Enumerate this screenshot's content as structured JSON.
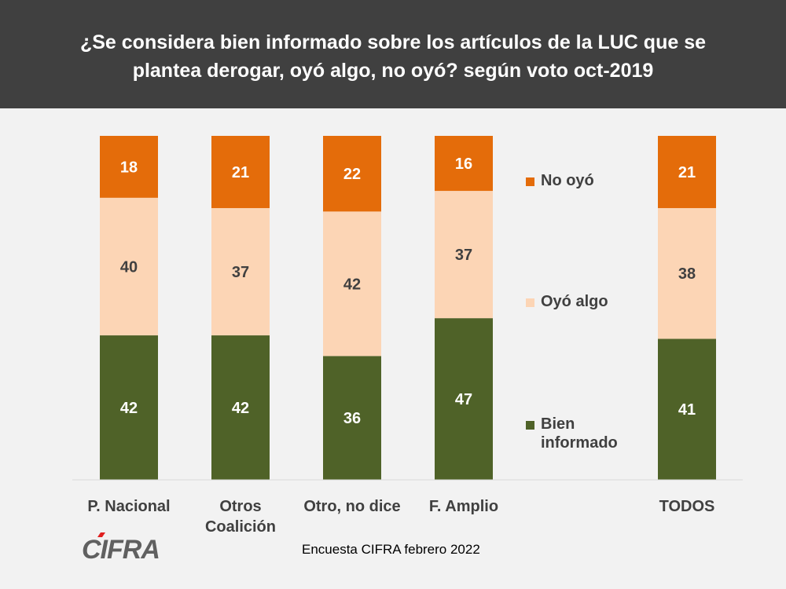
{
  "chart_data": {
    "type": "bar",
    "stacked": true,
    "title": "¿Se considera bien informado sobre los artículos de la LUC que se plantea derogar, oyó algo, no oyó? según voto oct-2019",
    "categories": [
      [
        "P. Nacional"
      ],
      [
        "Otros",
        "Coalición"
      ],
      [
        "Otro, no dice"
      ],
      [
        "F. Amplio"
      ],
      [
        "TODOS"
      ]
    ],
    "series": [
      {
        "name": [
          "Bien",
          "informado"
        ],
        "color": "#4f6228",
        "values": [
          42,
          42,
          36,
          47,
          41
        ]
      },
      {
        "name": [
          "Oyó algo"
        ],
        "color": "#fcd5b5",
        "values": [
          40,
          37,
          42,
          37,
          38
        ]
      },
      {
        "name": [
          "No oyó"
        ],
        "color": "#e46c0a",
        "values": [
          18,
          21,
          22,
          16,
          21
        ]
      }
    ],
    "ylim": [
      0,
      100
    ],
    "legend": "right",
    "grid": false
  },
  "footer": {
    "source": "Encuesta CIFRA febrero 2022",
    "logo_text": "CIFRA"
  }
}
